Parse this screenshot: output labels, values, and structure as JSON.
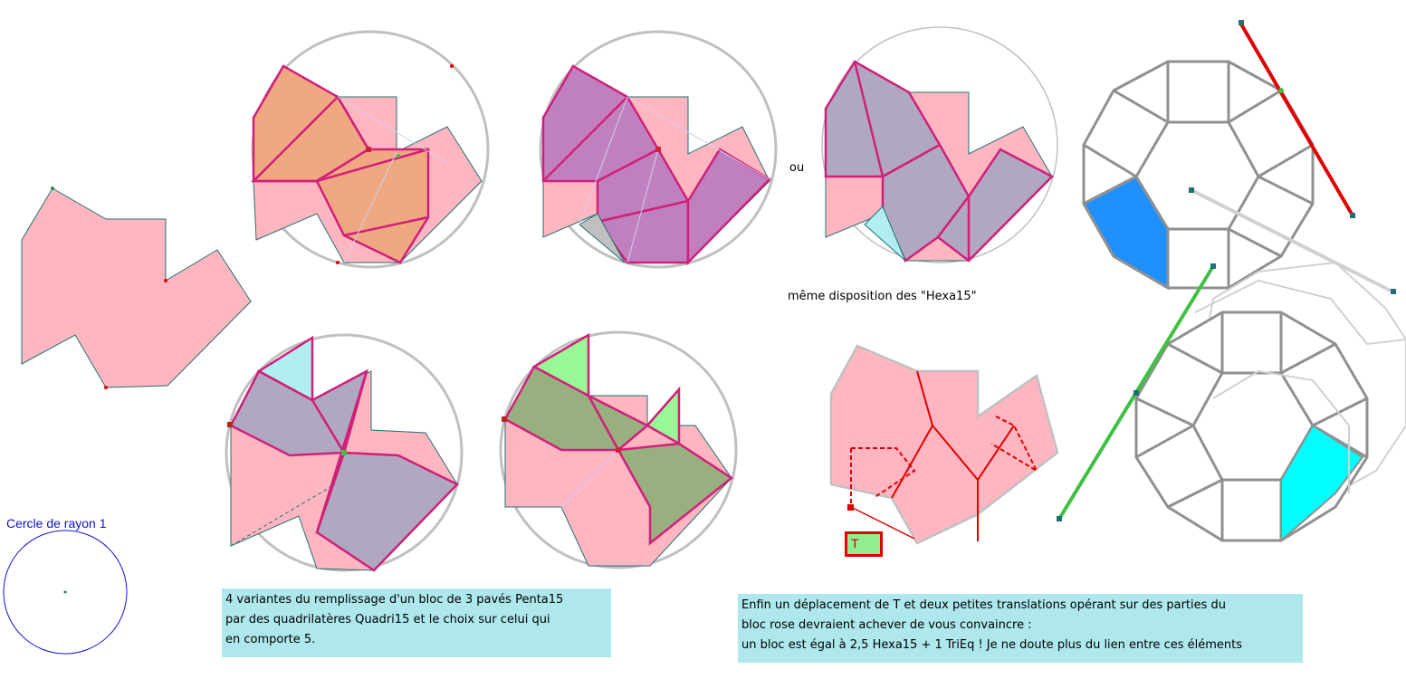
{
  "labels": {
    "ou": "ou",
    "meme_disposition": "même disposition des \"Hexa15\"",
    "cercle": "Cercle de rayon 1",
    "t_marker": "T"
  },
  "notes": {
    "left": [
      "4 variantes du remplissage d'un bloc de 3 pavés Penta15",
      "par des quadrilatères Quadri15 et le choix sur celui qui",
      "en comporte 5."
    ],
    "right": [
      "Enfin un déplacement de T et deux petites translations opérant sur des parties du",
      "bloc rose devraient achever de vous convaincre :",
      "un bloc est égal à 2,5 Hexa15 + 1 TriEq ! Je ne doute plus du lien entre ces éléments"
    ]
  },
  "colors": {
    "pink": "#ffb6c1",
    "orange": "#f0a882",
    "purple": "#c080c0",
    "mauve": "#b0a8c0",
    "olive": "#98b080",
    "light_green": "#98f898",
    "cyan": "#00ffff",
    "blue_tile": "#1e90ff",
    "edge": "#d0207a",
    "red": "#e00000",
    "green_line": "#40c040",
    "circle": "#c0c0c0",
    "note_bg": "#aee8ec"
  }
}
